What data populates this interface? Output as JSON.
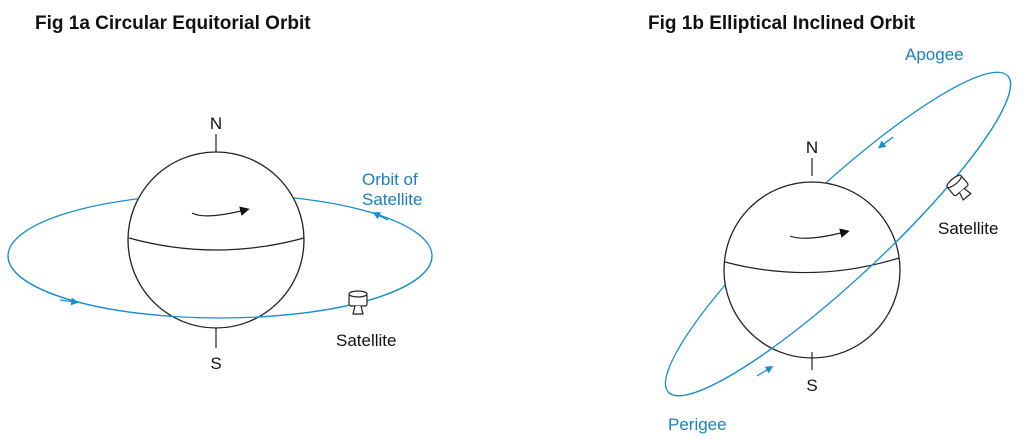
{
  "fig1a": {
    "title": "Fig 1a Circular Equitorial Orbit",
    "north": "N",
    "south": "S",
    "orbit_label": [
      "Orbit of",
      "Satellite"
    ],
    "satellite": "Satellite"
  },
  "fig1b": {
    "title": "Fig 1b Elliptical Inclined Orbit",
    "apogee": "Apogee",
    "north": "N",
    "satellite": "Satellite",
    "south": "S",
    "perigee": "Perigee"
  }
}
